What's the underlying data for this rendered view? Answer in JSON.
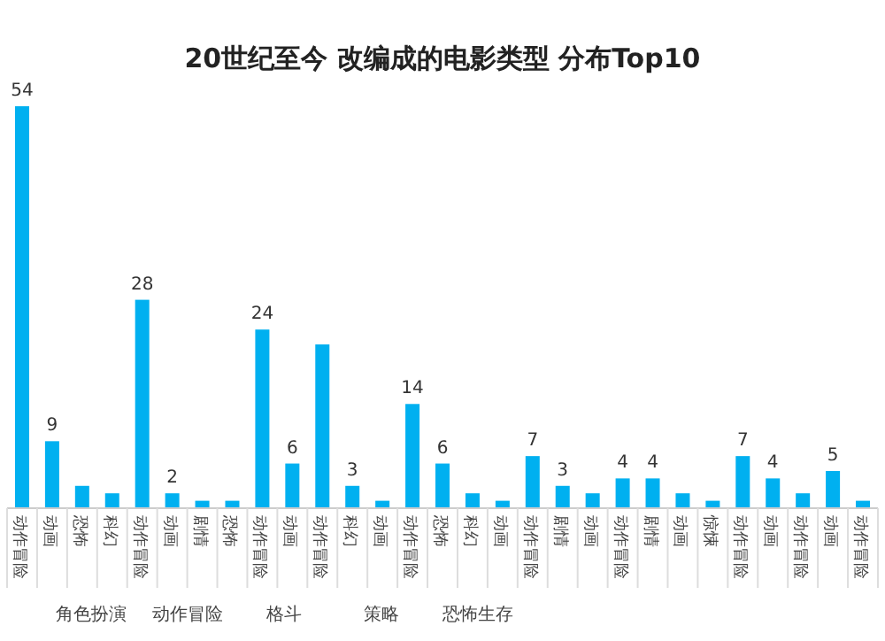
{
  "chart_data": {
    "type": "bar",
    "title": "20世纪至今 改编成的电影类型 分布Top10",
    "categories": [
      "动作冒险",
      "动画",
      "恐怖",
      "科幻",
      "动作冒险",
      "动画",
      "剧情",
      "恐怖",
      "动作冒险",
      "动画",
      "动作冒险",
      "科幻",
      "动画",
      "动作冒险",
      "恐怖",
      "科幻",
      "动画",
      "动作冒险",
      "剧情",
      "动画",
      "动作冒险",
      "剧情",
      "动画",
      "惊悚",
      "动作冒险",
      "动画",
      "动作冒险",
      "动画",
      "动作冒险"
    ],
    "values": [
      54,
      9,
      3,
      2,
      28,
      2,
      1,
      1,
      24,
      6,
      22,
      3,
      1,
      14,
      6,
      2,
      1,
      7,
      3,
      2,
      4,
      4,
      2,
      1,
      7,
      4,
      2,
      5,
      1
    ],
    "value_labels": [
      "54",
      "9",
      null,
      null,
      "28",
      "2",
      null,
      null,
      "24",
      "6",
      null,
      "3",
      null,
      "14",
      "6",
      null,
      null,
      "7",
      "3",
      null,
      "4",
      "4",
      null,
      null,
      "7",
      "4",
      null,
      "5",
      null
    ],
    "color": "#00b0f0",
    "annotations": [
      "角色扮演",
      "动作冒险",
      "格斗",
      "策略",
      "恐怖生存"
    ]
  }
}
